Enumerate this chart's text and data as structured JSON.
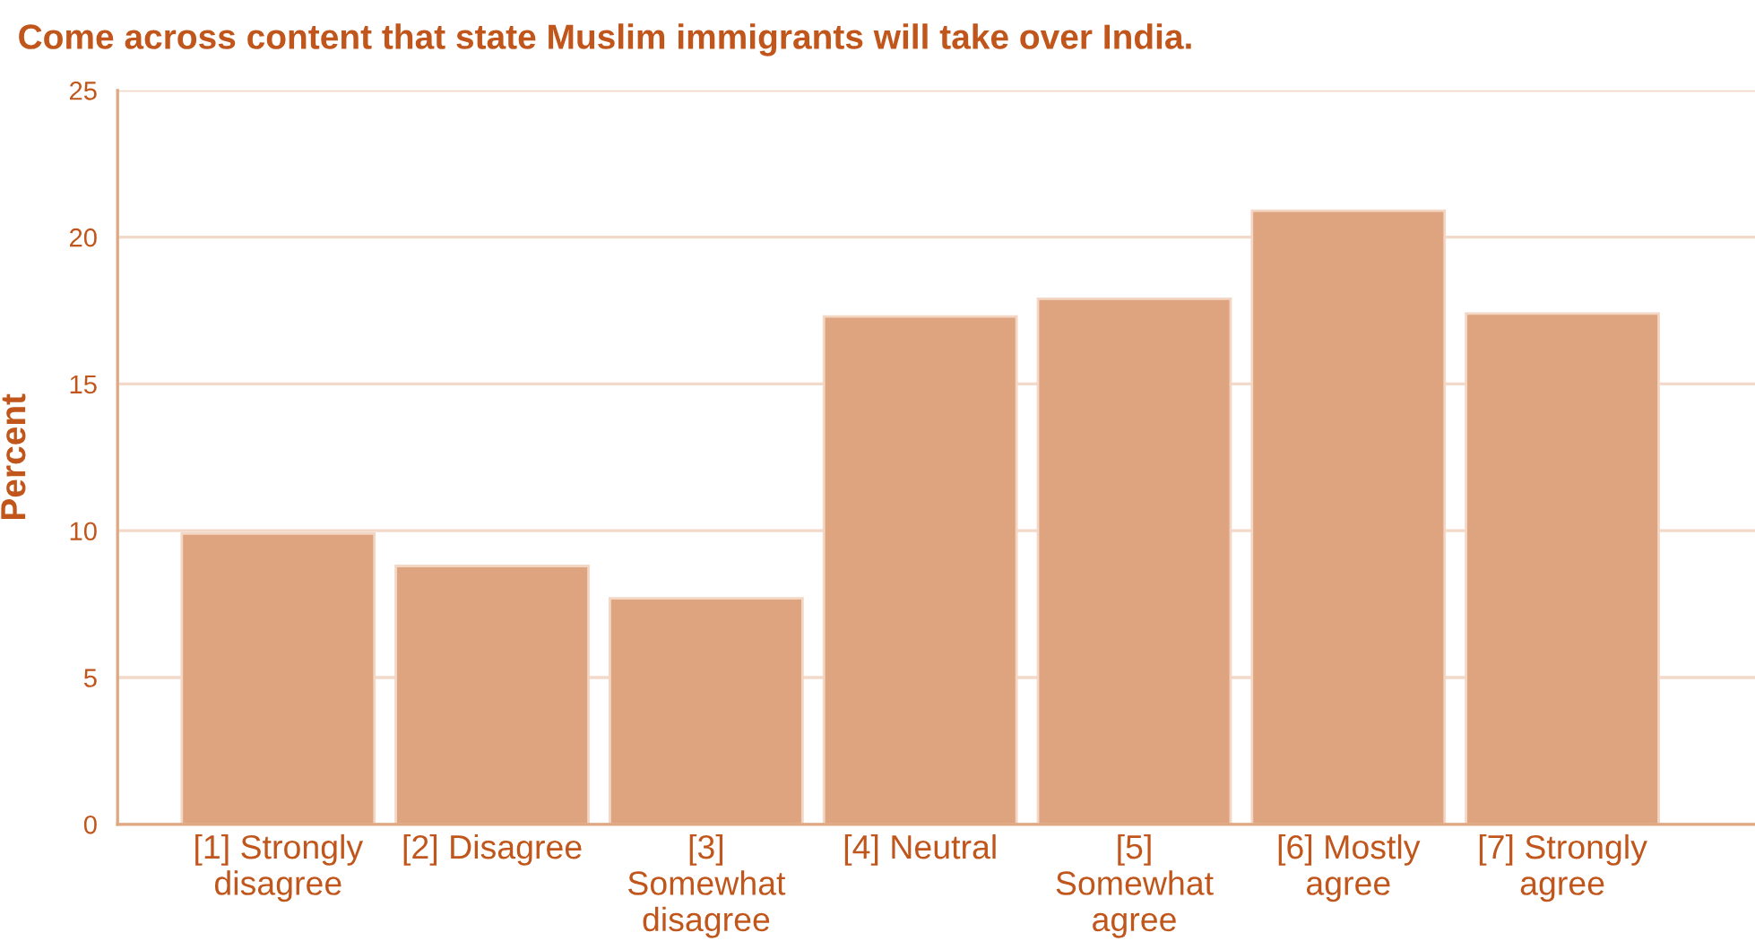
{
  "chart_data": {
    "type": "bar",
    "title": "Come across content that state Muslim immigrants will take over India.",
    "ylabel": "Percent",
    "categories": [
      "[1] Strongly disagree",
      "[2] Disagree",
      "[3] Somewhat disagree",
      "[4] Neutral",
      "[5] Somewhat agree",
      "[6] Mostly agree",
      "[7] Strongly agree"
    ],
    "values": [
      9.9,
      8.8,
      7.7,
      17.3,
      17.9,
      20.9,
      17.4
    ],
    "color": "#dda47f",
    "ylim": [
      0,
      25
    ],
    "yticks": [
      0,
      5,
      10,
      15,
      20,
      25
    ],
    "grid": "y"
  }
}
